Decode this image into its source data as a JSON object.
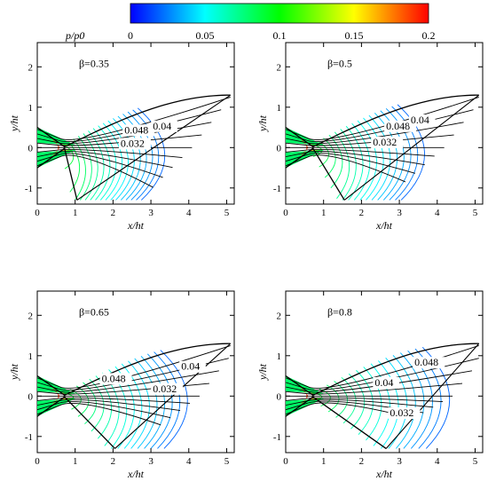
{
  "colorbar": {
    "label": "p/p0",
    "min": 0,
    "max": 0.2,
    "ticks": [
      "0",
      "0.05",
      "0.1",
      "0.15",
      "0.2"
    ],
    "colors": [
      "#0000ff",
      "#00ffff",
      "#00ff00",
      "#ffff00",
      "#ff0000"
    ]
  },
  "chart_data": [
    {
      "type": "contour",
      "beta_label": "β=0.35",
      "xlabel": "x/ht",
      "ylabel": "y/ht",
      "xlim": [
        0,
        5.2
      ],
      "ylim": [
        -1.4,
        2.6
      ],
      "xticks": [
        "0",
        "1",
        "2",
        "3",
        "4",
        "5"
      ],
      "yticks": [
        "-1",
        "0",
        "1",
        "2"
      ],
      "contour_labels": [
        {
          "text": "0.048",
          "x": 2.3,
          "y": 0.35
        },
        {
          "text": "0.04",
          "x": 3.05,
          "y": 0.45
        },
        {
          "text": "0.032",
          "x": 2.2,
          "y": 0.02
        }
      ],
      "lower_wall_end_x": 1.05,
      "upper_wall_end": [
        5.1,
        1.3
      ]
    },
    {
      "type": "contour",
      "beta_label": "β=0.5",
      "xlabel": "x/ht",
      "ylabel": "y/ht",
      "xlim": [
        0,
        5.2
      ],
      "ylim": [
        -1.4,
        2.6
      ],
      "xticks": [
        "0",
        "1",
        "2",
        "3",
        "4",
        "5"
      ],
      "yticks": [
        "-1",
        "0",
        "1",
        "2"
      ],
      "contour_labels": [
        {
          "text": "0.048",
          "x": 2.65,
          "y": 0.45
        },
        {
          "text": "0.04",
          "x": 3.3,
          "y": 0.6
        },
        {
          "text": "0.032",
          "x": 2.3,
          "y": 0.05
        }
      ],
      "lower_wall_end_x": 1.55,
      "upper_wall_end": [
        5.1,
        1.3
      ]
    },
    {
      "type": "contour",
      "beta_label": "β=0.65",
      "xlabel": "x/ht",
      "ylabel": "y/ht",
      "xlim": [
        0,
        5.2
      ],
      "ylim": [
        -1.4,
        2.6
      ],
      "xticks": [
        "0",
        "1",
        "2",
        "3",
        "4",
        "5"
      ],
      "yticks": [
        "-1",
        "0",
        "1",
        "2"
      ],
      "contour_labels": [
        {
          "text": "0.048",
          "x": 1.7,
          "y": 0.35
        },
        {
          "text": "0.04",
          "x": 3.8,
          "y": 0.65
        },
        {
          "text": "0.032",
          "x": 3.05,
          "y": 0.1
        }
      ],
      "lower_wall_end_x": 2.05,
      "upper_wall_end": [
        5.1,
        1.3
      ]
    },
    {
      "type": "contour",
      "beta_label": "β=0.8",
      "xlabel": "x/ht",
      "ylabel": "y/ht",
      "xlim": [
        0,
        5.2
      ],
      "ylim": [
        -1.4,
        2.6
      ],
      "xticks": [
        "0",
        "1",
        "2",
        "3",
        "4",
        "5"
      ],
      "yticks": [
        "-1",
        "0",
        "1",
        "2"
      ],
      "contour_labels": [
        {
          "text": "0.048",
          "x": 3.4,
          "y": 0.75
        },
        {
          "text": "0.04",
          "x": 2.35,
          "y": 0.25
        },
        {
          "text": "0.032",
          "x": 2.75,
          "y": -0.5
        }
      ],
      "lower_wall_end_x": 2.65,
      "upper_wall_end": [
        5.1,
        1.3
      ]
    }
  ]
}
